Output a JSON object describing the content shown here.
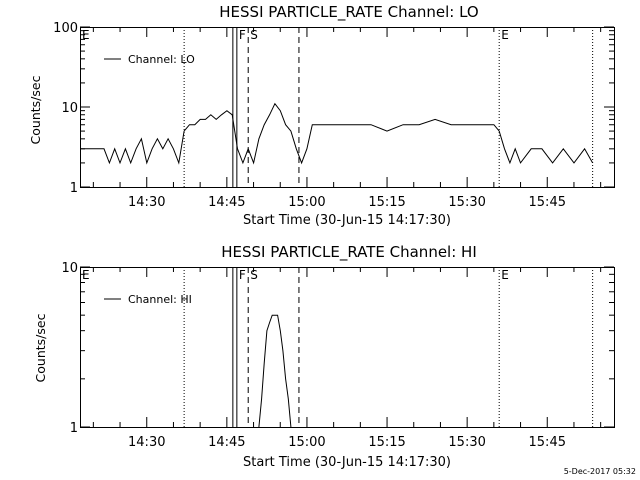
{
  "footer": {
    "timestamp": "5-Dec-2017 05:32"
  },
  "chart_data": [
    {
      "type": "line",
      "title": "HESSI PARTICLE_RATE Channel: LO",
      "xlabel": "Start Time (30-Jun-15 14:17:30)",
      "ylabel": "Counts/sec",
      "yscale": "log",
      "ylim": [
        1,
        100
      ],
      "y_ticks": [
        1,
        10,
        100
      ],
      "y_tick_labels": [
        "1",
        "10",
        "100"
      ],
      "xlim": [
        "14:17:30",
        "15:57:30"
      ],
      "x_ticks": [
        "14:30",
        "14:45",
        "15:00",
        "15:15",
        "15:30",
        "15:45"
      ],
      "legend": {
        "label": "Channel: LO",
        "placement": "top-left"
      },
      "markers": [
        {
          "label": "E",
          "time": "14:17:30",
          "style": "none"
        },
        {
          "label": "",
          "time": "14:37:00",
          "style": "dotted"
        },
        {
          "label": "F",
          "time": "14:46:30",
          "style": "double-solid"
        },
        {
          "label": "S",
          "time": "14:49:00",
          "style": "dashed"
        },
        {
          "label": "",
          "time": "14:58:30",
          "style": "dashed"
        },
        {
          "label": "E",
          "time": "15:36:00",
          "style": "dotted"
        },
        {
          "label": "",
          "time": "15:53:30",
          "style": "dotted"
        }
      ],
      "series": [
        {
          "name": "Channel: LO",
          "x": [
            "14:17:30",
            "14:20:00",
            "14:22:00",
            "14:23:00",
            "14:24:00",
            "14:25:00",
            "14:26:00",
            "14:27:00",
            "14:28:00",
            "14:29:00",
            "14:30:00",
            "14:31:00",
            "14:32:00",
            "14:33:00",
            "14:34:00",
            "14:35:00",
            "14:36:00",
            "14:37:00",
            "14:38:00",
            "14:39:00",
            "14:40:00",
            "14:41:00",
            "14:42:00",
            "14:43:00",
            "14:44:00",
            "14:45:00",
            "14:46:00",
            "14:47:00",
            "14:48:00",
            "14:49:00",
            "14:50:00",
            "14:51:00",
            "14:52:00",
            "14:53:00",
            "14:54:00",
            "14:55:00",
            "14:56:00",
            "14:57:00",
            "14:58:00",
            "14:59:00",
            "15:00:00",
            "15:01:00",
            "15:03:00",
            "15:06:00",
            "15:09:00",
            "15:12:00",
            "15:15:00",
            "15:18:00",
            "15:21:00",
            "15:24:00",
            "15:27:00",
            "15:30:00",
            "15:33:00",
            "15:35:00",
            "15:36:00",
            "15:37:00",
            "15:38:00",
            "15:39:00",
            "15:40:00",
            "15:42:00",
            "15:44:00",
            "15:46:00",
            "15:48:00",
            "15:50:00",
            "15:52:00",
            "15:53:30"
          ],
          "values": [
            3,
            3,
            3,
            2,
            3,
            2,
            3,
            2,
            3,
            4,
            2,
            3,
            4,
            3,
            4,
            3,
            2,
            5,
            6,
            6,
            7,
            7,
            8,
            7,
            8,
            9,
            8,
            3,
            2,
            3,
            2,
            4,
            6,
            8,
            11,
            9,
            6,
            5,
            3,
            2,
            3,
            6,
            6,
            6,
            6,
            6,
            5,
            6,
            6,
            7,
            6,
            6,
            6,
            6,
            5,
            3,
            2,
            3,
            2,
            3,
            3,
            2,
            3,
            2,
            3,
            2
          ]
        }
      ]
    },
    {
      "type": "line",
      "title": "HESSI PARTICLE_RATE Channel: HI",
      "xlabel": "Start Time (30-Jun-15 14:17:30)",
      "ylabel": "Counts/sec",
      "yscale": "log",
      "ylim": [
        1,
        10
      ],
      "y_ticks": [
        1,
        10
      ],
      "y_tick_labels": [
        "1",
        "10"
      ],
      "xlim": [
        "14:17:30",
        "15:57:30"
      ],
      "x_ticks": [
        "14:30",
        "14:45",
        "15:00",
        "15:15",
        "15:30",
        "15:45"
      ],
      "legend": {
        "label": "Channel: HI",
        "placement": "top-left"
      },
      "markers": [
        {
          "label": "E",
          "time": "14:17:30",
          "style": "none"
        },
        {
          "label": "",
          "time": "14:37:00",
          "style": "dotted"
        },
        {
          "label": "F",
          "time": "14:46:30",
          "style": "double-solid"
        },
        {
          "label": "S",
          "time": "14:49:00",
          "style": "dashed"
        },
        {
          "label": "",
          "time": "14:58:30",
          "style": "dashed"
        },
        {
          "label": "E",
          "time": "15:36:00",
          "style": "dotted"
        },
        {
          "label": "",
          "time": "15:53:30",
          "style": "dotted"
        }
      ],
      "series": [
        {
          "name": "Channel: HI",
          "x": [
            "14:51:00",
            "14:51:30",
            "14:52:00",
            "14:52:30",
            "14:53:00",
            "14:53:30",
            "14:54:00",
            "14:54:30",
            "14:55:00",
            "14:55:30",
            "14:56:00",
            "14:56:30",
            "14:57:00"
          ],
          "values": [
            1,
            1.5,
            2.5,
            4,
            4.5,
            5,
            5,
            5,
            4,
            3,
            2,
            1.5,
            1
          ]
        }
      ]
    }
  ]
}
